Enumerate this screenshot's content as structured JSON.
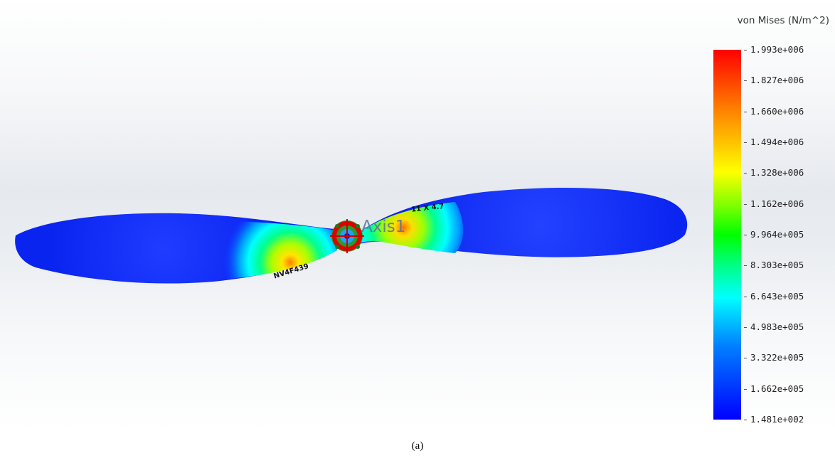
{
  "legend": {
    "title": "von Mises (N/m^2)",
    "ticks": [
      "1.993e+006",
      "1.827e+006",
      "1.660e+006",
      "1.494e+006",
      "1.328e+006",
      "1.162e+006",
      "9.964e+005",
      "8.303e+005",
      "6.643e+005",
      "4.983e+005",
      "3.322e+005",
      "1.662e+005",
      "1.481e+002"
    ]
  },
  "model": {
    "axis_label": "Axis1",
    "blade_text_left": "NV4F439",
    "blade_text_right": "11 X 4.7"
  },
  "caption": "(a)",
  "colors": {
    "max": "#ff0000",
    "min": "#0000ff",
    "background": "#e9ecf0"
  }
}
